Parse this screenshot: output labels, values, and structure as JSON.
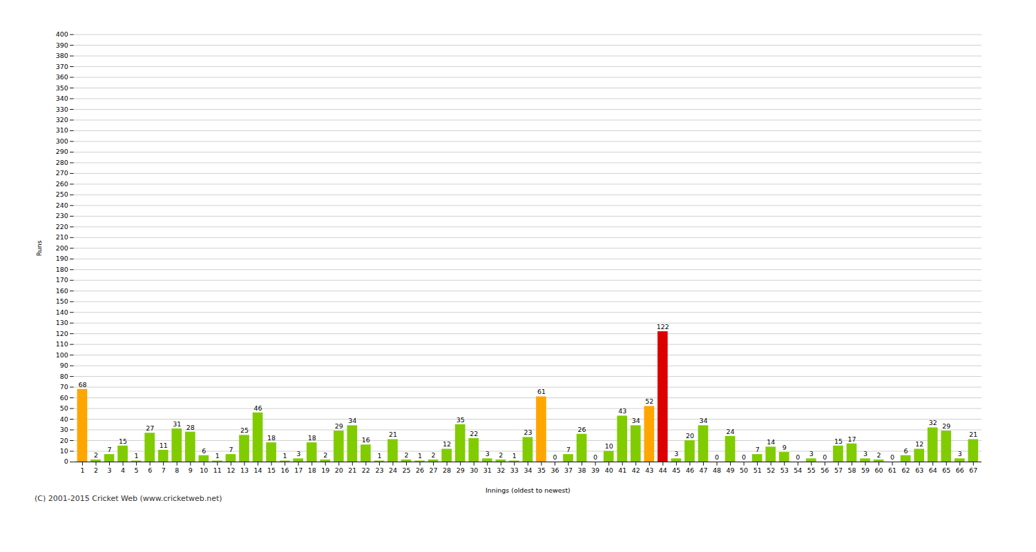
{
  "chart_data": {
    "type": "bar",
    "xlabel": "Innings (oldest to newest)",
    "ylabel": "Runs",
    "categories": [
      "1",
      "2",
      "3",
      "4",
      "5",
      "6",
      "7",
      "8",
      "9",
      "10",
      "11",
      "12",
      "13",
      "14",
      "15",
      "16",
      "17",
      "18",
      "19",
      "20",
      "21",
      "22",
      "23",
      "24",
      "25",
      "26",
      "27",
      "28",
      "29",
      "30",
      "31",
      "32",
      "33",
      "34",
      "35",
      "36",
      "37",
      "38",
      "39",
      "40",
      "41",
      "42",
      "43",
      "44",
      "45",
      "46",
      "47",
      "48",
      "49",
      "50",
      "51",
      "52",
      "53",
      "54",
      "55",
      "56",
      "57",
      "58",
      "59",
      "60",
      "61",
      "62",
      "63",
      "64",
      "65",
      "66",
      "67"
    ],
    "values": [
      68,
      2,
      7,
      15,
      1,
      27,
      11,
      31,
      28,
      6,
      1,
      7,
      25,
      46,
      18,
      1,
      3,
      18,
      2,
      29,
      34,
      16,
      1,
      21,
      2,
      1,
      2,
      12,
      35,
      22,
      3,
      2,
      1,
      23,
      61,
      0,
      7,
      26,
      0,
      10,
      43,
      34,
      52,
      122,
      3,
      20,
      34,
      0,
      24,
      0,
      7,
      14,
      9,
      0,
      3,
      0,
      15,
      17,
      3,
      2,
      0,
      6,
      12,
      32,
      29,
      3,
      21
    ],
    "colors": [
      "#FFA500",
      "#80CC00",
      "#80CC00",
      "#80CC00",
      "#80CC00",
      "#80CC00",
      "#80CC00",
      "#80CC00",
      "#80CC00",
      "#80CC00",
      "#80CC00",
      "#80CC00",
      "#80CC00",
      "#80CC00",
      "#80CC00",
      "#80CC00",
      "#80CC00",
      "#80CC00",
      "#80CC00",
      "#80CC00",
      "#80CC00",
      "#80CC00",
      "#80CC00",
      "#80CC00",
      "#80CC00",
      "#80CC00",
      "#80CC00",
      "#80CC00",
      "#80CC00",
      "#80CC00",
      "#80CC00",
      "#80CC00",
      "#80CC00",
      "#80CC00",
      "#FFA500",
      "#80CC00",
      "#80CC00",
      "#80CC00",
      "#80CC00",
      "#80CC00",
      "#80CC00",
      "#80CC00",
      "#FFA500",
      "#DD0000",
      "#80CC00",
      "#80CC00",
      "#80CC00",
      "#80CC00",
      "#80CC00",
      "#80CC00",
      "#80CC00",
      "#80CC00",
      "#80CC00",
      "#80CC00",
      "#80CC00",
      "#80CC00",
      "#80CC00",
      "#80CC00",
      "#80CC00",
      "#80CC00",
      "#80CC00",
      "#80CC00",
      "#80CC00",
      "#80CC00",
      "#80CC00",
      "#80CC00",
      "#80CC00"
    ],
    "ylim": [
      0,
      400
    ],
    "yticks": [
      0,
      10,
      20,
      30,
      40,
      50,
      60,
      70,
      80,
      90,
      100,
      110,
      120,
      130,
      140,
      150,
      160,
      170,
      180,
      190,
      200,
      210,
      220,
      230,
      240,
      250,
      260,
      270,
      280,
      290,
      300,
      310,
      320,
      330,
      340,
      350,
      360,
      370,
      380,
      390,
      400
    ],
    "grid": true,
    "data_labels": true,
    "annotations": [
      "(C) 2001-2015 Cricket Web (www.cricketweb.net)"
    ]
  }
}
